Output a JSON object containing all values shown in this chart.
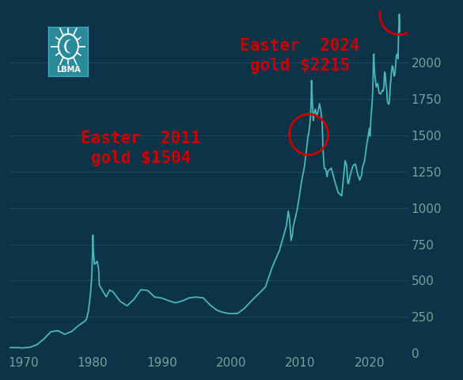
{
  "background_color": "#0d3349",
  "line_color": "#4ab8b8",
  "grid_color": "#1e4d66",
  "tick_color": "#7a9e9a",
  "annotation_color": "#cc0000",
  "lbma_box_color": "#2a8a9a",
  "ylim": [
    0,
    2350
  ],
  "yticks": [
    0,
    250,
    500,
    750,
    1000,
    1250,
    1500,
    1750,
    2000
  ],
  "xlim_start": 1968.0,
  "xlim_end": 2025.5,
  "xticks": [
    1970,
    1980,
    1990,
    2000,
    2010,
    2020
  ],
  "easter_2011_year": 2011.25,
  "easter_2011_price": 1504,
  "easter_2024_year": 2024.3,
  "easter_2024_price": 2330,
  "annotation_fontsize": 15,
  "tick_fontsize": 11,
  "line_width": 1.3,
  "gold_data": [
    [
      1968,
      39
    ],
    [
      1969,
      41
    ],
    [
      1970,
      36
    ],
    [
      1971,
      41
    ],
    [
      1972,
      58
    ],
    [
      1973,
      97
    ],
    [
      1974,
      154
    ],
    [
      1975,
      161
    ],
    [
      1976,
      125
    ],
    [
      1977,
      148
    ],
    [
      1978,
      193
    ],
    [
      1979.0,
      226
    ],
    [
      1979.2,
      240
    ],
    [
      1979.4,
      280
    ],
    [
      1979.6,
      350
    ],
    [
      1979.8,
      455
    ],
    [
      1979.9,
      512
    ],
    [
      1980.0,
      653
    ],
    [
      1980.08,
      850
    ],
    [
      1980.15,
      700
    ],
    [
      1980.3,
      600
    ],
    [
      1980.5,
      620
    ],
    [
      1980.7,
      640
    ],
    [
      1980.9,
      590
    ],
    [
      1981,
      460
    ],
    [
      1981.5,
      430
    ],
    [
      1982,
      376
    ],
    [
      1982.5,
      445
    ],
    [
      1983,
      424
    ],
    [
      1983.5,
      390
    ],
    [
      1984,
      360
    ],
    [
      1985,
      317
    ],
    [
      1986,
      368
    ],
    [
      1987,
      447
    ],
    [
      1988,
      437
    ],
    [
      1989,
      381
    ],
    [
      1990,
      383
    ],
    [
      1991,
      362
    ],
    [
      1992,
      344
    ],
    [
      1993,
      360
    ],
    [
      1994,
      384
    ],
    [
      1995,
      387
    ],
    [
      1996,
      388
    ],
    [
      1997,
      331
    ],
    [
      1998,
      294
    ],
    [
      1999,
      279
    ],
    [
      2000,
      273
    ],
    [
      2001,
      271
    ],
    [
      2002,
      310
    ],
    [
      2003,
      363
    ],
    [
      2004,
      410
    ],
    [
      2005,
      444
    ],
    [
      2006,
      604
    ],
    [
      2007,
      695
    ],
    [
      2008.0,
      880
    ],
    [
      2008.3,
      1000
    ],
    [
      2008.5,
      920
    ],
    [
      2008.7,
      750
    ],
    [
      2008.9,
      820
    ],
    [
      2009,
      870
    ],
    [
      2009.3,
      930
    ],
    [
      2009.6,
      990
    ],
    [
      2009.9,
      1090
    ],
    [
      2010.0,
      1110
    ],
    [
      2010.2,
      1180
    ],
    [
      2010.4,
      1230
    ],
    [
      2010.6,
      1270
    ],
    [
      2010.8,
      1360
    ],
    [
      2010.9,
      1390
    ],
    [
      2011.0,
      1430
    ],
    [
      2011.1,
      1480
    ],
    [
      2011.2,
      1510
    ],
    [
      2011.25,
      1504
    ],
    [
      2011.3,
      1530
    ],
    [
      2011.4,
      1570
    ],
    [
      2011.5,
      1620
    ],
    [
      2011.6,
      1740
    ],
    [
      2011.65,
      1900
    ],
    [
      2011.7,
      1830
    ],
    [
      2011.8,
      1700
    ],
    [
      2011.9,
      1580
    ],
    [
      2012.0,
      1650
    ],
    [
      2012.2,
      1690
    ],
    [
      2012.4,
      1620
    ],
    [
      2012.6,
      1660
    ],
    [
      2012.8,
      1730
    ],
    [
      2013.0,
      1670
    ],
    [
      2013.2,
      1590
    ],
    [
      2013.3,
      1400
    ],
    [
      2013.5,
      1250
    ],
    [
      2013.7,
      1280
    ],
    [
      2013.9,
      1200
    ],
    [
      2014,
      1250
    ],
    [
      2014.5,
      1290
    ],
    [
      2015,
      1180
    ],
    [
      2015.5,
      1100
    ],
    [
      2016,
      1060
    ],
    [
      2016.3,
      1230
    ],
    [
      2016.5,
      1340
    ],
    [
      2016.7,
      1310
    ],
    [
      2016.9,
      1150
    ],
    [
      2017,
      1160
    ],
    [
      2017.3,
      1240
    ],
    [
      2017.6,
      1290
    ],
    [
      2017.9,
      1300
    ],
    [
      2018,
      1310
    ],
    [
      2018.3,
      1230
    ],
    [
      2018.6,
      1180
    ],
    [
      2018.9,
      1230
    ],
    [
      2019,
      1280
    ],
    [
      2019.3,
      1310
    ],
    [
      2019.6,
      1430
    ],
    [
      2019.9,
      1520
    ],
    [
      2020.0,
      1560
    ],
    [
      2020.1,
      1470
    ],
    [
      2020.2,
      1600
    ],
    [
      2020.4,
      1730
    ],
    [
      2020.5,
      1800
    ],
    [
      2020.6,
      2050
    ],
    [
      2020.65,
      2070
    ],
    [
      2020.7,
      1970
    ],
    [
      2020.8,
      1900
    ],
    [
      2020.9,
      1870
    ],
    [
      2021.0,
      1820
    ],
    [
      2021.2,
      1870
    ],
    [
      2021.4,
      1780
    ],
    [
      2021.6,
      1780
    ],
    [
      2021.8,
      1800
    ],
    [
      2021.9,
      1810
    ],
    [
      2022.0,
      1800
    ],
    [
      2022.1,
      1820
    ],
    [
      2022.2,
      1950
    ],
    [
      2022.3,
      1930
    ],
    [
      2022.4,
      1840
    ],
    [
      2022.5,
      1830
    ],
    [
      2022.6,
      1720
    ],
    [
      2022.7,
      1720
    ],
    [
      2022.8,
      1710
    ],
    [
      2022.9,
      1720
    ],
    [
      2023.0,
      1820
    ],
    [
      2023.2,
      1950
    ],
    [
      2023.3,
      1980
    ],
    [
      2023.4,
      1970
    ],
    [
      2023.5,
      1930
    ],
    [
      2023.6,
      1900
    ],
    [
      2023.7,
      1920
    ],
    [
      2023.8,
      1980
    ],
    [
      2023.9,
      2050
    ],
    [
      2024.0,
      2060
    ],
    [
      2024.1,
      2050
    ],
    [
      2024.15,
      2000
    ],
    [
      2024.2,
      2180
    ],
    [
      2024.25,
      2215
    ],
    [
      2024.3,
      2290
    ],
    [
      2024.32,
      2340
    ],
    [
      2024.35,
      2300
    ],
    [
      2024.4,
      2200
    ]
  ]
}
